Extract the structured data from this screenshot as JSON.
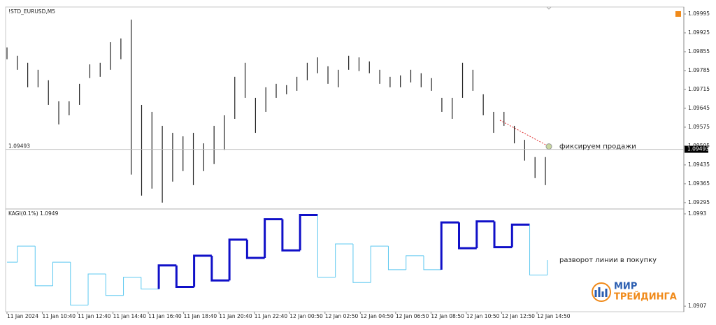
{
  "chart_data": [
    {
      "type": "range",
      "title": "!STD_EURUSD,M5",
      "color": "#222222",
      "high": [
        1.09871,
        1.0984,
        1.09814,
        1.09788,
        1.09749,
        1.09671,
        1.09671,
        1.09736,
        1.09808,
        1.09814,
        1.09891,
        1.09904,
        1.09974,
        1.09658,
        1.09632,
        1.0958,
        1.09554,
        1.09541,
        1.09554,
        1.09515,
        1.0958,
        1.09619,
        1.09762,
        1.09814,
        1.09684,
        1.09723,
        1.09736,
        1.09731,
        1.09762,
        1.09814,
        1.09834,
        1.09801,
        1.09788,
        1.0984,
        1.09834,
        1.09819,
        1.09788,
        1.09762,
        1.09767,
        1.09788,
        1.09775,
        1.09757,
        1.09684,
        1.09684,
        1.09814,
        1.09788,
        1.09697,
        1.09632,
        1.09632,
        1.0958,
        1.09528,
        1.09464,
        1.09464
      ],
      "low": [
        1.09827,
        1.09788,
        1.09723,
        1.09723,
        1.09658,
        1.09585,
        1.09619,
        1.09658,
        1.09757,
        1.09762,
        1.09788,
        1.09827,
        1.09399,
        1.09321,
        1.09347,
        1.09295,
        1.09373,
        1.09412,
        1.0936,
        1.09412,
        1.09438,
        1.0949,
        1.09606,
        1.09684,
        1.09554,
        1.09632,
        1.09684,
        1.09697,
        1.0971,
        1.09749,
        1.09775,
        1.09736,
        1.09723,
        1.09788,
        1.09783,
        1.09775,
        1.09736,
        1.09723,
        1.09723,
        1.09741,
        1.09723,
        1.0971,
        1.09632,
        1.09606,
        1.09684,
        1.0971,
        1.09619,
        1.09554,
        1.0958,
        1.09515,
        1.09451,
        1.09386,
        1.0936
      ],
      "ylim": [
        1.09274,
        1.10021
      ],
      "yticks": [
        1.09995,
        1.09925,
        1.09855,
        1.09785,
        1.09715,
        1.09645,
        1.09575,
        1.09505,
        1.09435,
        1.09365,
        1.09295
      ],
      "current_price": 1.09493,
      "annotation": "фиксируем продажи"
    },
    {
      "type": "kagi",
      "title": "KAGI(0.1%) 1.0949",
      "values": [
        1.0948,
        1.0963,
        1.0926,
        1.0948,
        1.0908,
        1.0937,
        1.0917,
        1.0934,
        1.0923,
        1.0945,
        1.0925,
        1.0954,
        1.0931,
        1.0969,
        1.0952,
        1.0988,
        1.0959,
        1.0992,
        1.0934,
        1.0965,
        1.0929,
        1.0963,
        1.0941,
        1.0954,
        1.0941,
        1.0985,
        1.0961,
        1.0986,
        1.0962,
        1.0983,
        1.0936
      ],
      "end_value": 1.095,
      "segment_widths": [
        1,
        1,
        1,
        1,
        1,
        1,
        1,
        1,
        1,
        3,
        3,
        3,
        3,
        3,
        3,
        3,
        3,
        3,
        1,
        1,
        1,
        1,
        1,
        1,
        1,
        3,
        3,
        3,
        3,
        3,
        1
      ],
      "thin_color": "#5cc8f0",
      "thick_color": "#1010c8",
      "ylim": [
        1.09025,
        1.09969
      ],
      "yticks": [
        1.0993,
        1.0907
      ],
      "annotation": "разворот линии в покупку"
    }
  ],
  "time_labels": [
    "11 Jan 2024",
    "11 Jan 10:40",
    "11 Jan 12:40",
    "11 Jan 14:40",
    "11 Jan 16:40",
    "11 Jan 18:40",
    "11 Jan 20:40",
    "11 Jan 22:40",
    "12 Jan 00:50",
    "12 Jan 02:50",
    "12 Jan 04:50",
    "12 Jan 06:50",
    "12 Jan 08:50",
    "12 Jan 10:50",
    "12 Jan 12:50",
    "12 Jan 14:50"
  ],
  "logo": {
    "line1": "МИР",
    "line2": "ТРЕЙДИНГА"
  }
}
